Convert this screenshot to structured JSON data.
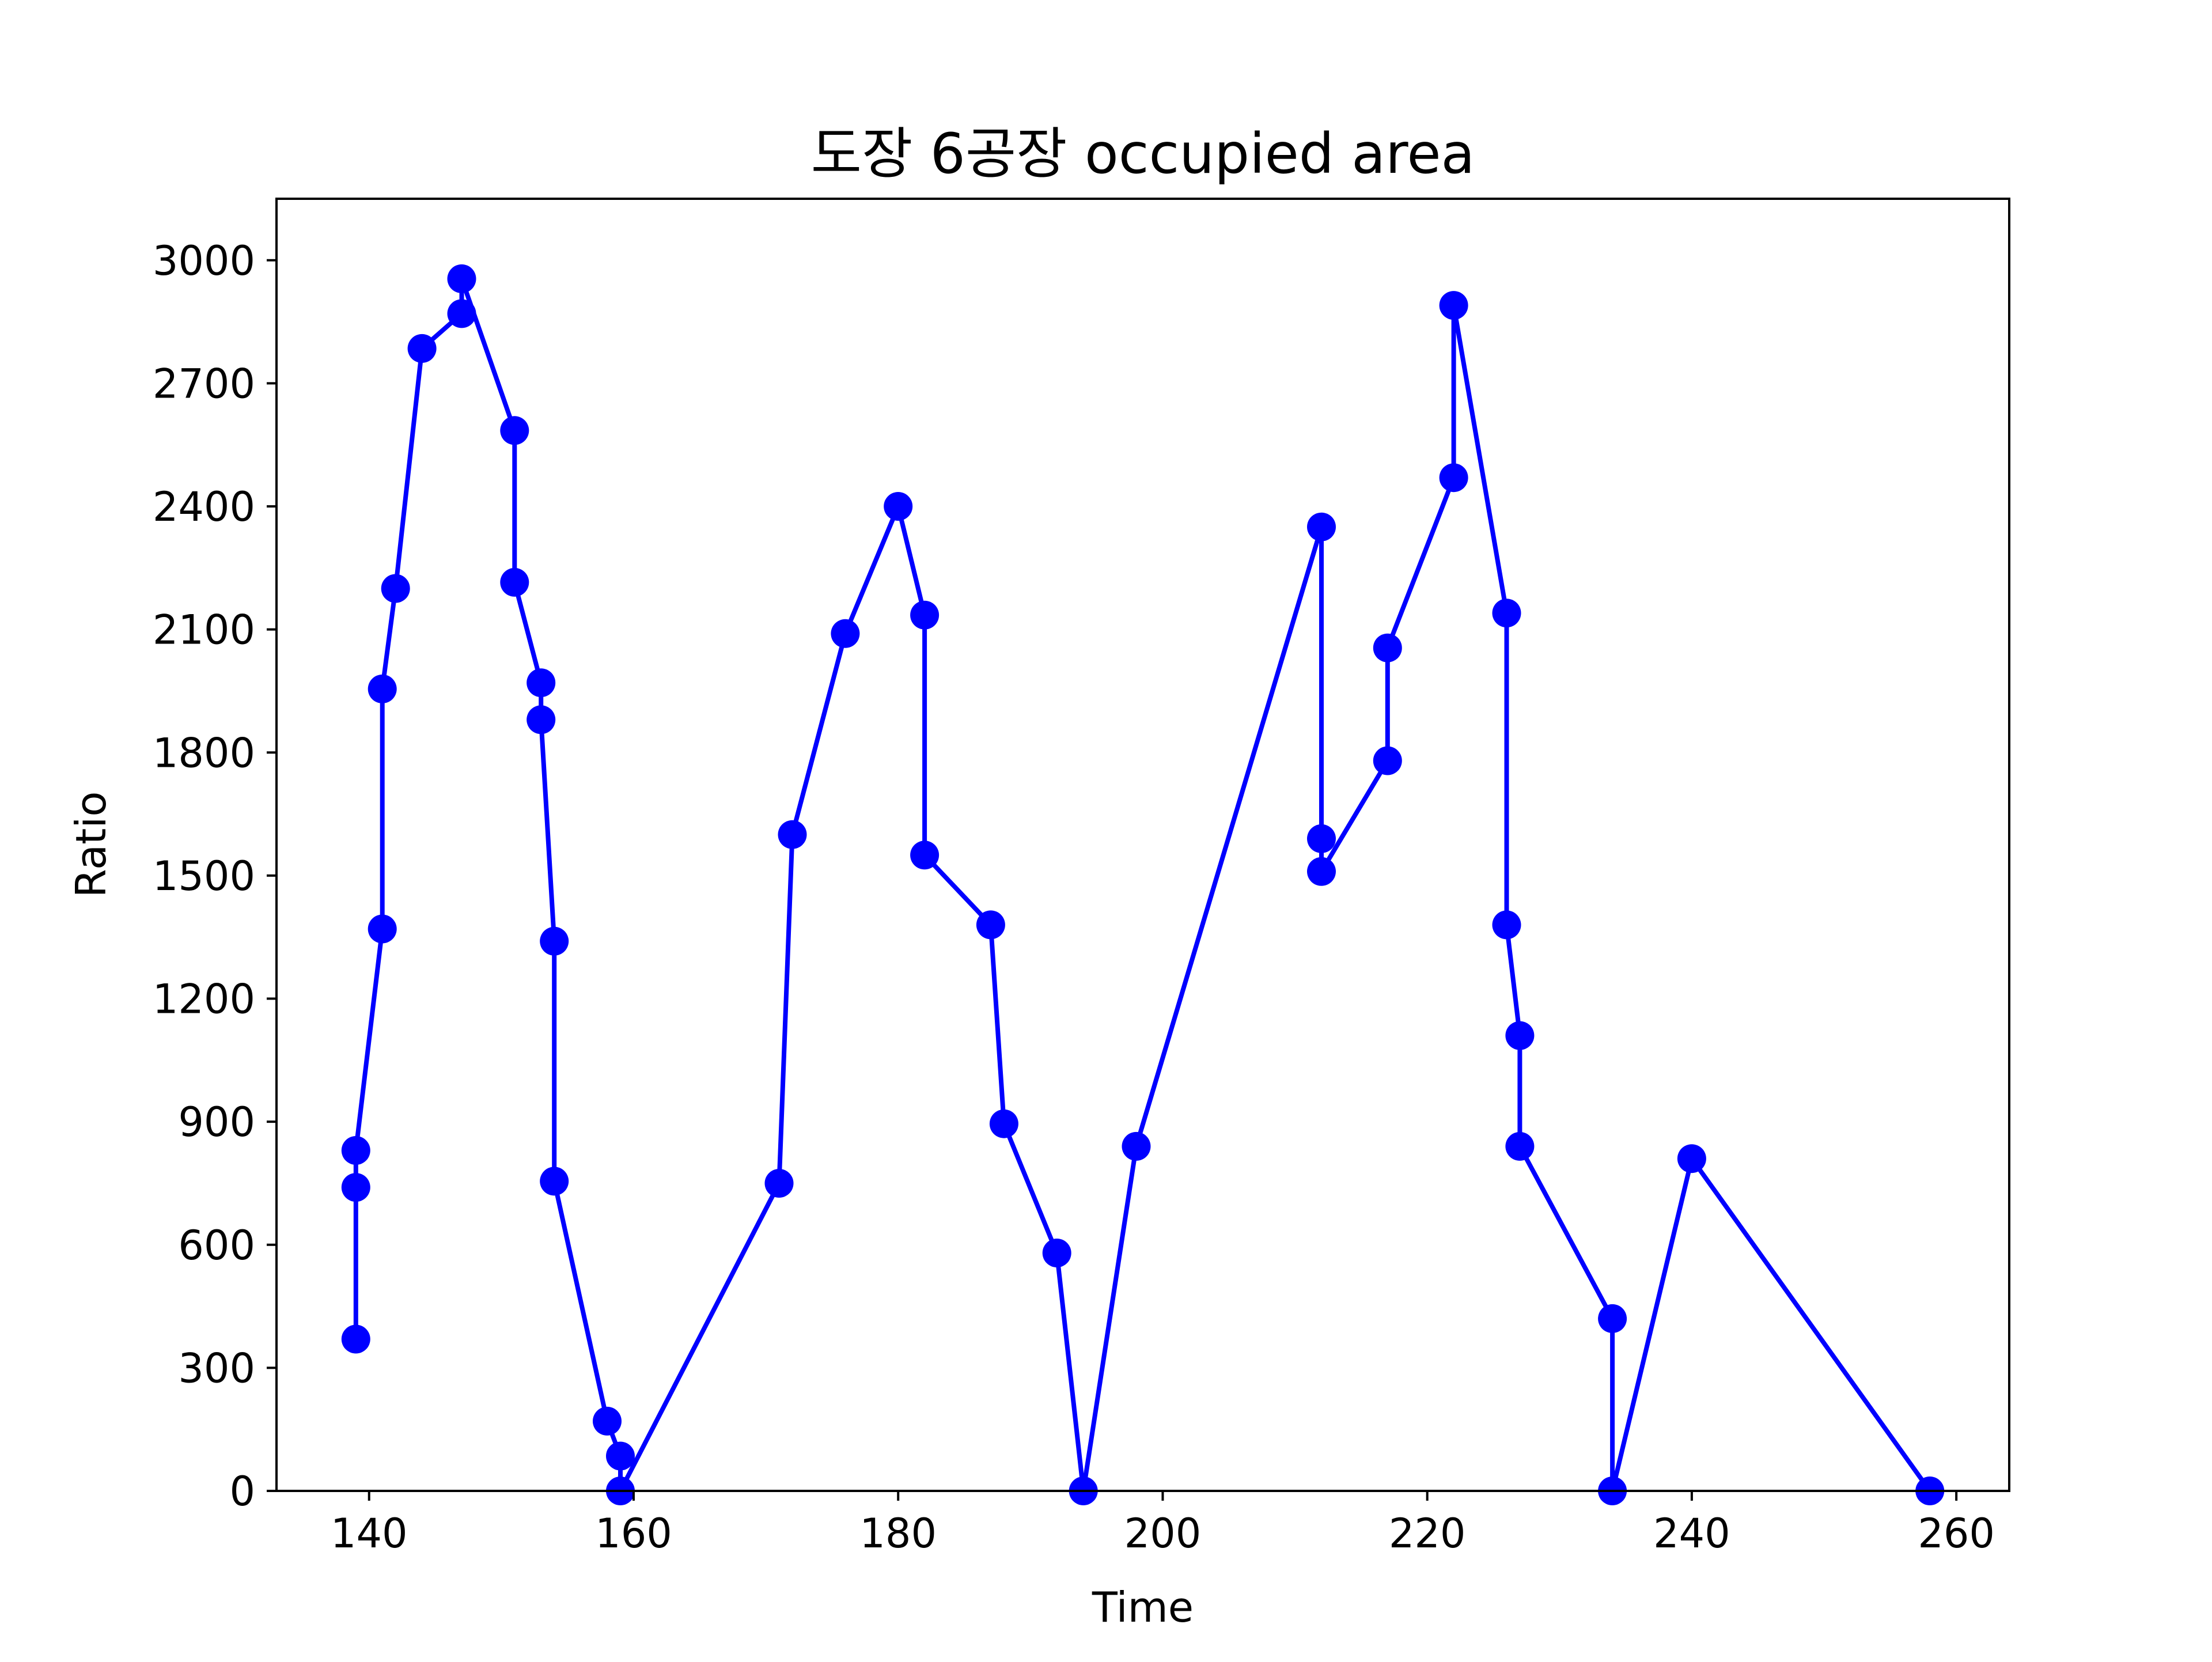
{
  "chart_data": {
    "type": "line",
    "title": "도장 6공장 occupied area",
    "xlabel": "Time",
    "ylabel": "Ratio",
    "xlim": [
      133,
      264
    ],
    "ylim": [
      0,
      3150
    ],
    "xticks": [
      140,
      160,
      180,
      200,
      220,
      240,
      260
    ],
    "yticks": [
      0,
      300,
      600,
      900,
      1200,
      1500,
      1800,
      2100,
      2400,
      2700,
      3000
    ],
    "grid": false,
    "legend": "none",
    "series": [
      {
        "color": "#0000ff",
        "marker": "circle",
        "x": [
          139,
          139,
          139,
          141,
          141,
          142,
          144,
          147,
          147,
          151,
          151,
          153,
          153,
          154,
          154,
          158,
          159,
          159,
          171,
          172,
          176,
          180,
          182,
          182,
          187,
          188,
          192,
          194,
          198,
          212,
          212,
          212,
          217,
          217,
          222,
          222,
          226,
          226,
          227,
          227,
          234,
          234,
          240,
          258
        ],
        "y": [
          370,
          740,
          830,
          1370,
          1955,
          2200,
          2785,
          2870,
          2955,
          2585,
          2215,
          1970,
          1880,
          1340,
          755,
          170,
          85,
          0,
          750,
          1600,
          2090,
          2400,
          2135,
          1550,
          1380,
          895,
          580,
          0,
          840,
          2350,
          1590,
          1510,
          1780,
          2055,
          2470,
          2890,
          2140,
          1380,
          1110,
          840,
          420,
          0,
          810,
          0
        ]
      }
    ]
  }
}
